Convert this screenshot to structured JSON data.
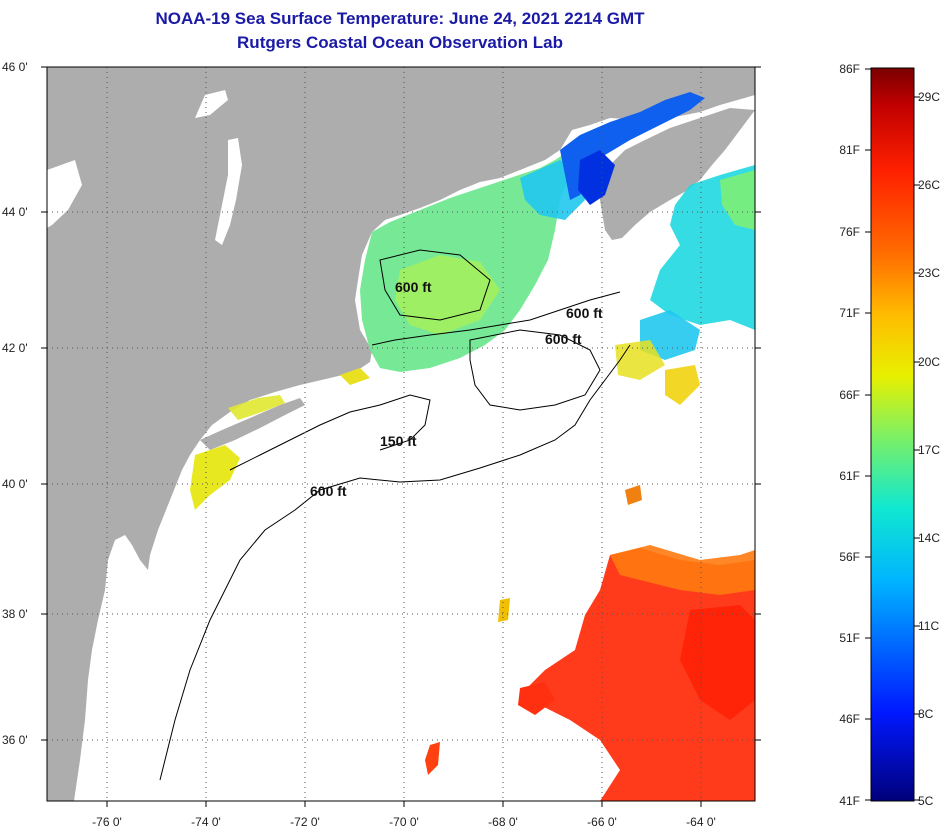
{
  "title": {
    "line1": "NOAA-19 Sea Surface Temperature:  June 24, 2021 2214 GMT",
    "line2": "Rutgers Coastal Ocean Observation Lab"
  },
  "axes": {
    "lat_labels": [
      "46 0'",
      "44 0'",
      "42 0'",
      "40 0'",
      "38 0'",
      "36 0'"
    ],
    "lon_labels": [
      "-76 0'",
      "-74 0'",
      "-72 0'",
      "-70 0'",
      "-68 0'",
      "-66 0'",
      "-64 0'"
    ]
  },
  "contours": {
    "c600_a": "600 ft",
    "c600_b": "600 ft",
    "c600_c": "600 ft",
    "c150": "150 ft",
    "c600_d": "600 ft"
  },
  "colorbar": {
    "fahrenheit": [
      "86F",
      "81F",
      "76F",
      "71F",
      "66F",
      "61F",
      "56F",
      "51F",
      "46F",
      "41F"
    ],
    "celsius": [
      "29C",
      "26C",
      "23C",
      "20C",
      "17C",
      "14C",
      "11C",
      "8C",
      "5C"
    ]
  },
  "colors": {
    "land": "#adadad",
    "ocean": "#ffffff",
    "title": "#1a1aa6"
  }
}
